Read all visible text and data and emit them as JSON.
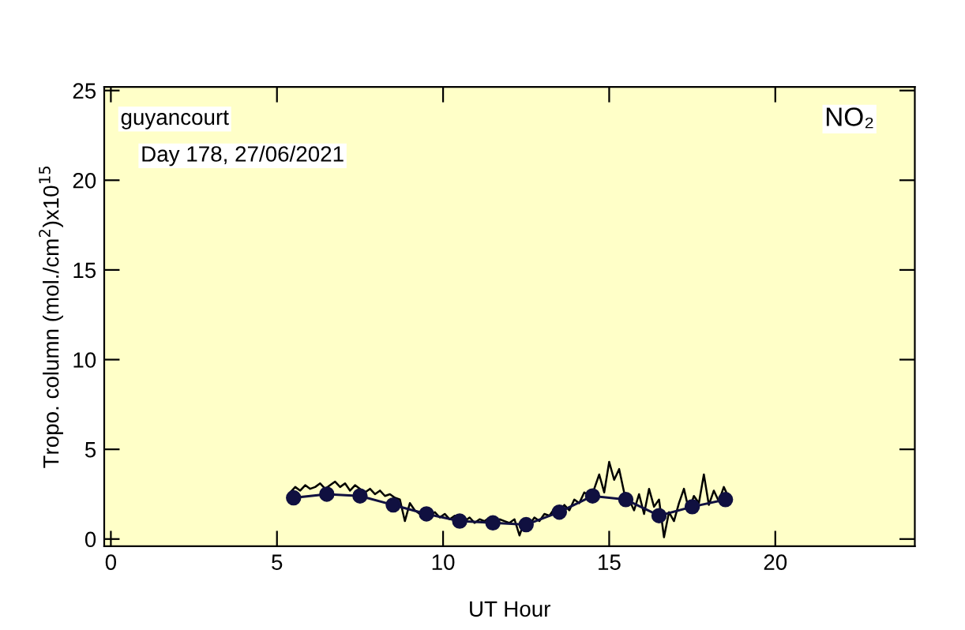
{
  "chart_data": {
    "type": "line",
    "xlabel": "UT Hour",
    "ylabel": "Tropo. column (mol./cm$^{2}$)x10$^{15}$",
    "annotations": [
      "guyancourt",
      "Day 178, 27/06/2021",
      "NO₂"
    ],
    "xlim": [
      -0.2,
      24.2
    ],
    "xticks": [
      0,
      5,
      10,
      15,
      20
    ],
    "ylim": [
      -0.4,
      25.2
    ],
    "yticks": [
      0,
      5,
      10,
      15,
      20,
      25
    ],
    "grid": false,
    "legend": false,
    "series": [
      {
        "color": "#000000",
        "marker": "none",
        "x": [
          5.4,
          5.55,
          5.7,
          5.85,
          6.0,
          6.15,
          6.3,
          6.45,
          6.6,
          6.75,
          6.9,
          7.05,
          7.2,
          7.35,
          7.5,
          7.65,
          7.8,
          7.95,
          8.1,
          8.25,
          8.4,
          8.55,
          8.7,
          8.85,
          9.0,
          9.15,
          9.3,
          9.45,
          9.6,
          9.75,
          9.9,
          10.05,
          10.2,
          10.35,
          10.5,
          10.65,
          10.8,
          10.95,
          11.1,
          11.25,
          11.4,
          11.55,
          11.7,
          11.85,
          12.0,
          12.15,
          12.3,
          12.45,
          12.6,
          12.75,
          12.9,
          13.05,
          13.2,
          13.35,
          13.5,
          13.65,
          13.8,
          13.95,
          14.1,
          14.25,
          14.4,
          14.55,
          14.7,
          14.85,
          15.0,
          15.15,
          15.3,
          15.45,
          15.6,
          15.75,
          15.9,
          16.05,
          16.2,
          16.35,
          16.5,
          16.65,
          16.8,
          16.95,
          17.1,
          17.25,
          17.4,
          17.55,
          17.7,
          17.85,
          18.0,
          18.15,
          18.3,
          18.45,
          18.6
        ],
        "values": [
          2.6,
          2.9,
          2.7,
          3.0,
          2.8,
          2.9,
          3.1,
          2.8,
          3.0,
          3.2,
          2.9,
          3.1,
          2.7,
          3.0,
          2.8,
          2.6,
          2.8,
          2.5,
          2.7,
          2.4,
          2.5,
          2.3,
          2.2,
          1.0,
          2.0,
          1.6,
          1.4,
          1.7,
          1.3,
          1.5,
          1.2,
          1.4,
          1.1,
          1.3,
          1.2,
          1.0,
          1.2,
          0.9,
          1.1,
          1.0,
          1.2,
          0.8,
          1.1,
          1.0,
          0.9,
          1.1,
          0.2,
          1.0,
          0.8,
          1.2,
          1.0,
          1.4,
          1.3,
          1.7,
          1.5,
          1.9,
          1.6,
          2.2,
          2.0,
          2.6,
          2.4,
          2.8,
          3.6,
          2.6,
          4.3,
          3.3,
          3.9,
          2.6,
          2.2,
          1.6,
          2.5,
          1.4,
          2.8,
          1.8,
          2.2,
          0.1,
          1.5,
          1.0,
          2.0,
          2.8,
          1.6,
          2.4,
          2.0,
          3.6,
          1.9,
          2.7,
          2.1,
          2.9,
          2.3
        ]
      },
      {
        "color": "#101040",
        "marker": "circle",
        "x": [
          5.5,
          6.5,
          7.5,
          8.5,
          9.5,
          10.5,
          11.5,
          12.5,
          13.5,
          14.5,
          15.5,
          16.5,
          17.5,
          18.5
        ],
        "values": [
          2.3,
          2.5,
          2.4,
          1.9,
          1.4,
          1.0,
          0.9,
          0.8,
          1.5,
          2.4,
          2.2,
          1.3,
          1.8,
          2.2
        ]
      }
    ]
  }
}
